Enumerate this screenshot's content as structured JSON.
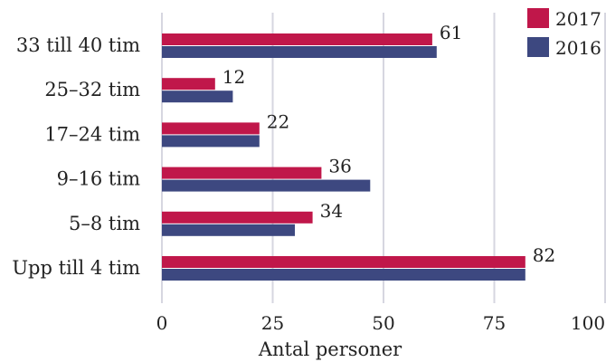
{
  "chart_data": {
    "type": "bar",
    "orientation": "horizontal",
    "categories": [
      "33 till 40 tim",
      "25–32 tim",
      "17–24 tim",
      "9–16 tim",
      "5–8 tim",
      "Upp till 4 tim"
    ],
    "series": [
      {
        "name": "2017",
        "color": "#c0174a",
        "values": [
          61,
          12,
          22,
          36,
          34,
          82
        ]
      },
      {
        "name": "2016",
        "color": "#3d4880",
        "values": [
          62,
          16,
          22,
          47,
          30,
          82
        ]
      }
    ],
    "data_labels_series": "2017",
    "xlabel": "Antal personer",
    "ylabel": "",
    "xlim": [
      0,
      100
    ],
    "xticks": [
      0,
      25,
      50,
      75,
      100
    ],
    "grid": true,
    "legend_position": "top-right"
  }
}
